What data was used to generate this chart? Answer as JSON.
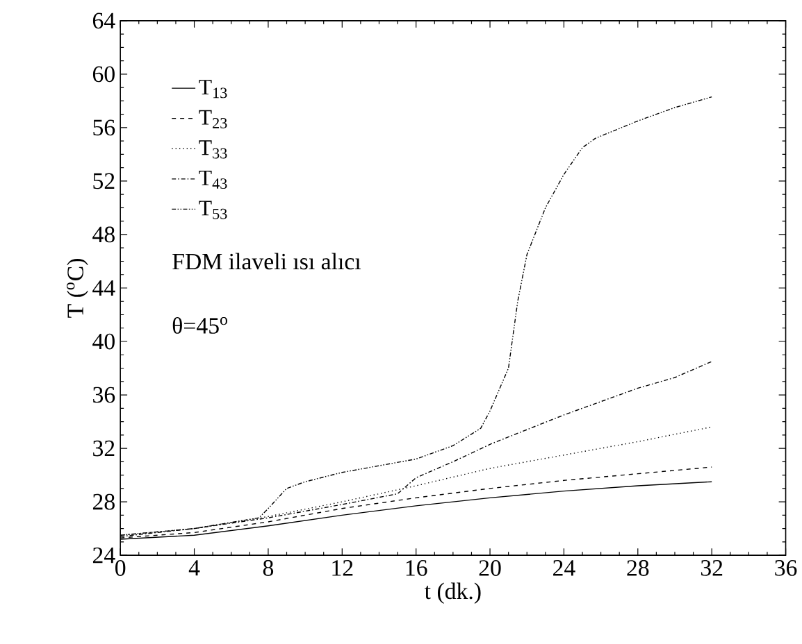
{
  "chart_data": {
    "type": "line",
    "xlabel": "t (dk.)",
    "ylabel": "T ($^{o}$C)",
    "xlim": [
      0,
      36
    ],
    "xticks": [
      0,
      4,
      8,
      12,
      16,
      20,
      24,
      28,
      32,
      36
    ],
    "ylim": [
      24,
      64
    ],
    "yticks": [
      24,
      28,
      32,
      36,
      40,
      44,
      48,
      52,
      56,
      60,
      64
    ],
    "grid": false,
    "legend": "top left",
    "marker": "none",
    "annotations": [
      "FDM ilaveli ısı alıcı",
      "θ=45$^{o}$"
    ],
    "series": [
      {
        "name": "T$_{13}$",
        "color": "#000000",
        "line_style": "solid",
        "x": [
          0,
          4,
          8,
          12,
          16,
          20,
          24,
          28,
          32
        ],
        "values": [
          25.2,
          25.5,
          26.2,
          27.0,
          27.7,
          28.3,
          28.8,
          29.2,
          29.5
        ]
      },
      {
        "name": "T$_{23}$",
        "color": "#000000",
        "line_style": "dashed",
        "x": [
          0,
          4,
          8,
          12,
          16,
          20,
          24,
          28,
          32
        ],
        "values": [
          25.3,
          25.7,
          26.5,
          27.5,
          28.3,
          29.0,
          29.6,
          30.1,
          30.6
        ]
      },
      {
        "name": "T$_{33}$",
        "color": "#000000",
        "line_style": "dotted",
        "x": [
          0,
          4,
          8,
          12,
          16,
          20,
          24,
          28,
          32
        ],
        "values": [
          25.5,
          26.0,
          26.9,
          28.0,
          29.2,
          30.5,
          31.5,
          32.5,
          33.6
        ]
      },
      {
        "name": "T$_{43}$",
        "color": "#000000",
        "line_style": "dashdot",
        "x": [
          0,
          4,
          8,
          12,
          15,
          16,
          18,
          20,
          24,
          28,
          30,
          32
        ],
        "values": [
          25.4,
          26.0,
          26.8,
          27.8,
          28.6,
          29.8,
          31.0,
          32.3,
          34.5,
          36.5,
          37.3,
          38.5
        ]
      },
      {
        "name": "T$_{53}$",
        "color": "#000000",
        "line_style": "dashdotdot",
        "x": [
          0,
          4,
          7.5,
          8,
          9,
          10,
          12,
          16,
          18,
          19.5,
          20,
          21,
          21.5,
          22,
          23,
          24,
          25,
          25.7,
          28,
          30,
          32
        ],
        "values": [
          25.5,
          26.0,
          26.8,
          27.5,
          29.0,
          29.5,
          30.2,
          31.2,
          32.2,
          33.5,
          34.8,
          38.0,
          43.0,
          46.5,
          50.0,
          52.5,
          54.5,
          55.2,
          56.5,
          57.5,
          58.3
        ]
      }
    ]
  }
}
